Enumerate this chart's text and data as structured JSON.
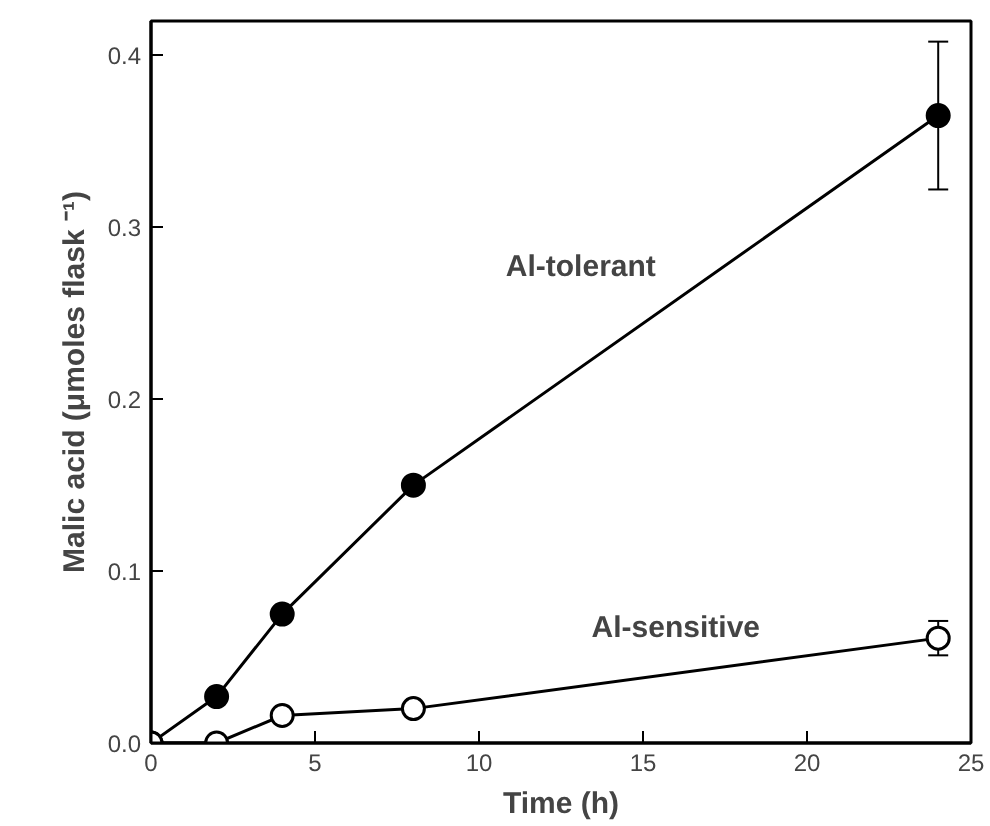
{
  "chart_data": {
    "type": "line",
    "xlabel": "Time (h)",
    "ylabel": "Malic acid (μmoles flask ⁻¹)",
    "xlim": [
      0,
      25
    ],
    "xticks": [
      0,
      5,
      10,
      15,
      20,
      25
    ],
    "ylim": [
      0,
      0.42
    ],
    "yticks": [
      {
        "value": 0,
        "label": "0.0"
      },
      {
        "value": 0.1,
        "label": "0.1"
      },
      {
        "value": 0.2,
        "label": "0.2"
      },
      {
        "value": 0.3,
        "label": "0.3"
      },
      {
        "value": 0.4,
        "label": "0.4"
      }
    ],
    "x": [
      0,
      2,
      4,
      8,
      24
    ],
    "series": [
      {
        "name": "Al-tolerant",
        "color": "#000000",
        "values": [
          0,
          0.027,
          0.075,
          0.15,
          0.365
        ],
        "errors": [
          null,
          null,
          null,
          null,
          0.043
        ]
      },
      {
        "name": "Al-sensitive",
        "color": "#000000",
        "values": [
          0,
          0,
          0.016,
          0.02,
          0.061
        ],
        "errors": [
          null,
          null,
          null,
          null,
          0.01
        ]
      }
    ],
    "marker": "circle",
    "legend": false,
    "grid": false
  }
}
